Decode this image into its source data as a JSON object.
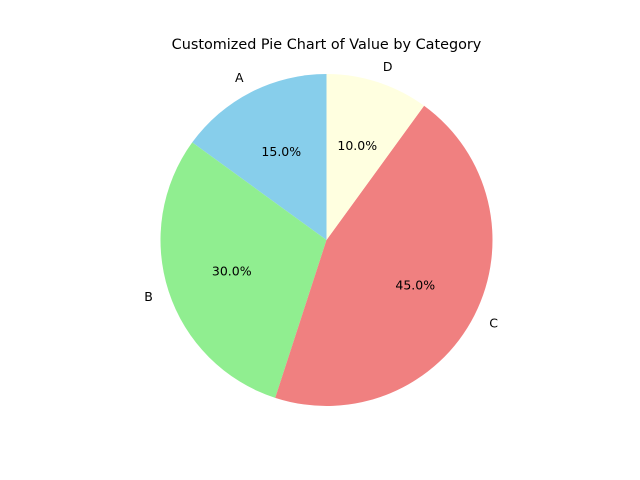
{
  "chart_data": {
    "type": "pie",
    "title": "Customized Pie Chart of Value by Category",
    "categories": [
      "A",
      "B",
      "C",
      "D"
    ],
    "values": [
      15,
      30,
      45,
      10
    ],
    "percent_labels": [
      "15.0%",
      "30.0%",
      "45.0%",
      "10.0%"
    ],
    "colors": [
      "#87CEEB",
      "#90EE90",
      "#F08080",
      "#FFFFE0"
    ],
    "start_angle_degrees": 90,
    "direction": "counterclockwise",
    "legend": "none"
  }
}
